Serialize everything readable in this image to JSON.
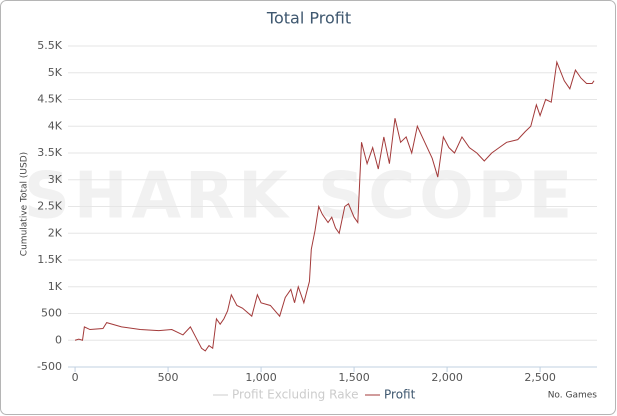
{
  "chart_data": {
    "type": "line",
    "title": "Total Profit",
    "watermark": "SHARK SCOPE",
    "y_label": "Cumulative Total (USD)",
    "x_label": "No. Games",
    "x": [
      0,
      20,
      40,
      50,
      80,
      150,
      170,
      250,
      350,
      450,
      520,
      580,
      620,
      650,
      680,
      700,
      720,
      740,
      760,
      780,
      800,
      820,
      840,
      870,
      900,
      950,
      980,
      1000,
      1050,
      1100,
      1130,
      1160,
      1180,
      1200,
      1230,
      1260,
      1270,
      1290,
      1310,
      1330,
      1360,
      1380,
      1400,
      1420,
      1450,
      1470,
      1500,
      1520,
      1540,
      1570,
      1600,
      1630,
      1660,
      1690,
      1720,
      1750,
      1780,
      1810,
      1840,
      1880,
      1920,
      1950,
      1980,
      2010,
      2040,
      2080,
      2120,
      2160,
      2200,
      2240,
      2280,
      2320,
      2380,
      2420,
      2450,
      2480,
      2500,
      2530,
      2560,
      2590,
      2630,
      2660,
      2690,
      2720,
      2750,
      2780,
      2790
    ],
    "series": [
      {
        "name": "Profit Excluding Rake",
        "color": "#cccccc",
        "visible": false,
        "values": [
          null,
          null,
          null,
          null,
          null,
          null,
          null,
          null,
          null,
          null,
          null,
          null,
          null,
          null,
          null,
          null,
          null,
          null,
          null,
          null,
          null,
          null,
          null,
          null,
          null,
          null,
          null,
          null,
          null,
          null,
          null,
          null,
          null,
          null,
          null,
          null,
          null,
          null,
          null,
          null,
          null,
          null,
          null,
          null,
          null,
          null,
          null,
          null,
          null,
          null,
          null,
          null,
          null,
          null,
          null,
          null,
          null,
          null,
          null,
          null,
          null,
          null,
          null,
          null,
          null,
          null,
          null,
          null,
          null,
          null,
          null,
          null,
          null,
          null,
          null,
          null,
          null,
          null,
          null,
          null,
          null,
          null,
          null,
          null,
          null,
          null,
          null
        ]
      },
      {
        "name": "Profit",
        "color": "#a33a3a",
        "visible": true,
        "values": [
          0,
          20,
          0,
          250,
          200,
          220,
          330,
          250,
          200,
          180,
          200,
          100,
          250,
          50,
          -150,
          -200,
          -100,
          -150,
          400,
          300,
          400,
          550,
          850,
          650,
          600,
          450,
          850,
          700,
          650,
          450,
          800,
          950,
          700,
          1000,
          700,
          1100,
          1700,
          2050,
          2500,
          2350,
          2200,
          2300,
          2100,
          2000,
          2500,
          2550,
          2300,
          2200,
          3700,
          3300,
          3600,
          3200,
          3800,
          3300,
          4150,
          3700,
          3800,
          3500,
          4000,
          3700,
          3400,
          3050,
          3800,
          3600,
          3500,
          3800,
          3600,
          3500,
          3350,
          3500,
          3600,
          3700,
          3750,
          3900,
          4000,
          4400,
          4200,
          4500,
          4450,
          5200,
          4850,
          4700,
          5050,
          4900,
          4800,
          4800,
          4850
        ]
      }
    ],
    "xlim": [
      -38,
      2806
    ],
    "xticks": [
      0,
      500,
      {
        "value": 1000,
        "label": "1,000"
      },
      {
        "value": 1500,
        "label": "1,500"
      },
      {
        "value": 2000,
        "label": "2,000"
      },
      {
        "value": 2500,
        "label": "2,500"
      }
    ],
    "ylim": [
      -500,
      5500
    ],
    "yticks": [
      -500,
      0,
      500,
      {
        "value": 1000,
        "label": "1K"
      },
      {
        "value": 1500,
        "label": "1.5K"
      },
      {
        "value": 2000,
        "label": "2K"
      },
      {
        "value": 2500,
        "label": "2.5K"
      },
      {
        "value": 3000,
        "label": "3K"
      },
      {
        "value": 3500,
        "label": "3.5K"
      },
      {
        "value": 4000,
        "label": "4K"
      },
      {
        "value": 4500,
        "label": "4.5K"
      },
      {
        "value": 5000,
        "label": "5K"
      },
      {
        "value": 5500,
        "label": "5.5K"
      }
    ],
    "grid": true
  }
}
